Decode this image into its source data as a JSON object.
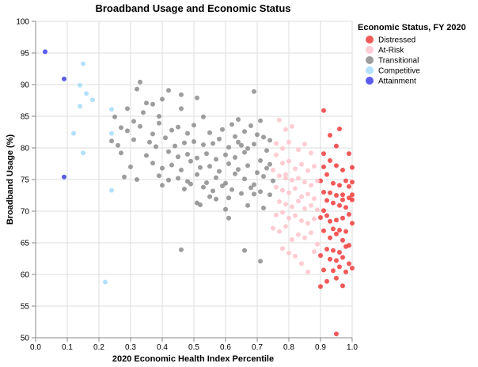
{
  "chart_data": {
    "type": "scatter",
    "title": "Broadband Usage and Economic Status",
    "xlabel": "2020 Economic Health Index Percentile",
    "ylabel": "Broadband Usage (%)",
    "xlim": [
      0,
      1
    ],
    "ylim": [
      50,
      100
    ],
    "xticks": [
      "0.0",
      "0.1",
      "0.2",
      "0.3",
      "0.4",
      "0.5",
      "0.6",
      "0.7",
      "0.8",
      "0.9",
      "1.0"
    ],
    "yticks": [
      "50",
      "55",
      "60",
      "65",
      "70",
      "75",
      "80",
      "85",
      "90",
      "95",
      "100"
    ],
    "grid": true,
    "legend": {
      "title": "Economic Status, FY 2020",
      "position": "right"
    },
    "series": [
      {
        "name": "Distressed",
        "color": "#f03c3c",
        "points": [
          [
            0.91,
            85.9
          ],
          [
            0.93,
            82.0
          ],
          [
            0.96,
            83.0
          ],
          [
            0.95,
            80.3
          ],
          [
            0.91,
            79.1
          ],
          [
            0.93,
            78.0
          ],
          [
            0.99,
            79.1
          ],
          [
            0.91,
            77.0
          ],
          [
            0.95,
            77.2
          ],
          [
            0.97,
            76.5
          ],
          [
            1.0,
            76.9
          ],
          [
            0.92,
            75.8
          ],
          [
            0.9,
            74.8
          ],
          [
            0.94,
            74.4
          ],
          [
            0.96,
            74.1
          ],
          [
            0.98,
            74.8
          ],
          [
            0.99,
            73.9
          ],
          [
            1.0,
            74.6
          ],
          [
            0.91,
            73.0
          ],
          [
            0.93,
            72.9
          ],
          [
            0.95,
            72.5
          ],
          [
            0.97,
            72.6
          ],
          [
            0.99,
            72.1
          ],
          [
            0.92,
            71.7
          ],
          [
            0.94,
            71.3
          ],
          [
            0.96,
            70.9
          ],
          [
            0.98,
            70.6
          ],
          [
            1.0,
            71.8
          ],
          [
            0.91,
            70.1
          ],
          [
            0.9,
            69.0
          ],
          [
            0.93,
            68.4
          ],
          [
            0.95,
            68.6
          ],
          [
            0.97,
            68.9
          ],
          [
            0.99,
            69.5
          ],
          [
            0.94,
            67.2
          ],
          [
            0.96,
            67.0
          ],
          [
            0.98,
            66.8
          ],
          [
            1.0,
            68.1
          ],
          [
            0.91,
            66.9
          ],
          [
            0.93,
            65.8
          ],
          [
            0.95,
            66.4
          ],
          [
            0.97,
            65.4
          ],
          [
            0.99,
            64.6
          ],
          [
            0.92,
            64.0
          ],
          [
            0.94,
            63.8
          ],
          [
            0.96,
            63.5
          ],
          [
            0.98,
            64.4
          ],
          [
            0.9,
            63.0
          ],
          [
            0.93,
            62.4
          ],
          [
            0.95,
            62.2
          ],
          [
            0.97,
            62.7
          ],
          [
            0.99,
            61.7
          ],
          [
            0.91,
            60.7
          ],
          [
            0.94,
            60.6
          ],
          [
            0.96,
            61.2
          ],
          [
            0.98,
            60.4
          ],
          [
            1.0,
            61.0
          ],
          [
            0.9,
            58.1
          ],
          [
            0.92,
            58.9
          ],
          [
            0.95,
            59.4
          ],
          [
            0.97,
            58.2
          ],
          [
            0.95,
            50.6
          ],
          [
            0.92,
            69.3
          ],
          [
            0.97,
            71.8
          ],
          [
            1.0,
            72.6
          ]
        ]
      },
      {
        "name": "At-Risk",
        "color": "#ffc3cc",
        "points": [
          [
            0.77,
            84.4
          ],
          [
            0.79,
            82.9
          ],
          [
            0.81,
            83.4
          ],
          [
            0.8,
            80.9
          ],
          [
            0.78,
            79.9
          ],
          [
            0.83,
            79.7
          ],
          [
            0.85,
            80.6
          ],
          [
            0.87,
            79.2
          ],
          [
            0.76,
            78.9
          ],
          [
            0.78,
            77.6
          ],
          [
            0.8,
            77.9
          ],
          [
            0.82,
            76.7
          ],
          [
            0.84,
            77.4
          ],
          [
            0.86,
            76.4
          ],
          [
            0.88,
            77.1
          ],
          [
            0.75,
            76.5
          ],
          [
            0.77,
            75.6
          ],
          [
            0.79,
            75.8
          ],
          [
            0.81,
            74.9
          ],
          [
            0.83,
            75.2
          ],
          [
            0.85,
            74.6
          ],
          [
            0.87,
            74.1
          ],
          [
            0.89,
            74.8
          ],
          [
            0.76,
            73.8
          ],
          [
            0.78,
            73.3
          ],
          [
            0.8,
            72.9
          ],
          [
            0.82,
            73.6
          ],
          [
            0.84,
            72.3
          ],
          [
            0.86,
            72.7
          ],
          [
            0.88,
            72.0
          ],
          [
            0.77,
            71.5
          ],
          [
            0.79,
            71.1
          ],
          [
            0.81,
            70.7
          ],
          [
            0.83,
            71.6
          ],
          [
            0.85,
            70.4
          ],
          [
            0.87,
            70.9
          ],
          [
            0.89,
            70.2
          ],
          [
            0.76,
            69.4
          ],
          [
            0.78,
            69.8
          ],
          [
            0.8,
            68.9
          ],
          [
            0.82,
            69.3
          ],
          [
            0.84,
            68.5
          ],
          [
            0.86,
            68.1
          ],
          [
            0.88,
            68.8
          ],
          [
            0.75,
            67.3
          ],
          [
            0.77,
            66.8
          ],
          [
            0.79,
            67.6
          ],
          [
            0.81,
            65.5
          ],
          [
            0.83,
            66.3
          ],
          [
            0.85,
            65.8
          ],
          [
            0.87,
            66.6
          ],
          [
            0.89,
            64.8
          ],
          [
            0.78,
            64.1
          ],
          [
            0.8,
            63.4
          ],
          [
            0.82,
            62.9
          ],
          [
            0.84,
            61.7
          ],
          [
            0.86,
            60.4
          ],
          [
            0.88,
            63.6
          ],
          [
            0.79,
            75.2
          ],
          [
            0.76,
            80.7
          ]
        ]
      },
      {
        "name": "Transitional",
        "color": "#8c8c8c",
        "points": [
          [
            0.33,
            90.4
          ],
          [
            0.32,
            89.3
          ],
          [
            0.42,
            89.1
          ],
          [
            0.4,
            87.7
          ],
          [
            0.46,
            88.4
          ],
          [
            0.69,
            88.9
          ],
          [
            0.35,
            87.1
          ],
          [
            0.29,
            86.2
          ],
          [
            0.37,
            86.9
          ],
          [
            0.51,
            87.9
          ],
          [
            0.25,
            84.9
          ],
          [
            0.31,
            84.2
          ],
          [
            0.34,
            85.6
          ],
          [
            0.39,
            85.0
          ],
          [
            0.46,
            86.2
          ],
          [
            0.53,
            84.9
          ],
          [
            0.64,
            84.5
          ],
          [
            0.71,
            84.3
          ],
          [
            0.27,
            83.2
          ],
          [
            0.29,
            82.7
          ],
          [
            0.33,
            83.4
          ],
          [
            0.37,
            82.2
          ],
          [
            0.39,
            83.9
          ],
          [
            0.43,
            82.8
          ],
          [
            0.45,
            83.3
          ],
          [
            0.48,
            82.3
          ],
          [
            0.5,
            83.6
          ],
          [
            0.55,
            82.4
          ],
          [
            0.59,
            82.9
          ],
          [
            0.62,
            83.7
          ],
          [
            0.66,
            82.6
          ],
          [
            0.68,
            83.5
          ],
          [
            0.7,
            82.1
          ],
          [
            0.72,
            81.7
          ],
          [
            0.74,
            81.2
          ],
          [
            0.24,
            81.1
          ],
          [
            0.26,
            80.4
          ],
          [
            0.31,
            81.3
          ],
          [
            0.36,
            80.9
          ],
          [
            0.38,
            80.2
          ],
          [
            0.41,
            81.6
          ],
          [
            0.44,
            80.3
          ],
          [
            0.47,
            80.8
          ],
          [
            0.5,
            81.0
          ],
          [
            0.53,
            80.5
          ],
          [
            0.56,
            80.7
          ],
          [
            0.58,
            81.4
          ],
          [
            0.61,
            80.1
          ],
          [
            0.63,
            81.8
          ],
          [
            0.65,
            80.4
          ],
          [
            0.67,
            79.9
          ],
          [
            0.69,
            80.6
          ],
          [
            0.73,
            79.6
          ],
          [
            0.27,
            79.2
          ],
          [
            0.35,
            78.8
          ],
          [
            0.42,
            79.4
          ],
          [
            0.45,
            78.6
          ],
          [
            0.48,
            79.0
          ],
          [
            0.51,
            78.4
          ],
          [
            0.54,
            79.1
          ],
          [
            0.57,
            78.2
          ],
          [
            0.6,
            78.9
          ],
          [
            0.63,
            78.5
          ],
          [
            0.66,
            79.3
          ],
          [
            0.71,
            78.0
          ],
          [
            0.74,
            77.4
          ],
          [
            0.3,
            77.0
          ],
          [
            0.37,
            77.6
          ],
          [
            0.4,
            76.8
          ],
          [
            0.43,
            77.3
          ],
          [
            0.46,
            76.5
          ],
          [
            0.49,
            77.9
          ],
          [
            0.52,
            76.9
          ],
          [
            0.55,
            77.1
          ],
          [
            0.58,
            76.3
          ],
          [
            0.61,
            77.5
          ],
          [
            0.64,
            76.6
          ],
          [
            0.67,
            77.2
          ],
          [
            0.7,
            76.1
          ],
          [
            0.73,
            76.8
          ],
          [
            0.28,
            75.4
          ],
          [
            0.32,
            75.0
          ],
          [
            0.39,
            75.6
          ],
          [
            0.42,
            74.9
          ],
          [
            0.45,
            75.2
          ],
          [
            0.48,
            74.7
          ],
          [
            0.51,
            75.8
          ],
          [
            0.54,
            74.5
          ],
          [
            0.57,
            75.3
          ],
          [
            0.6,
            74.4
          ],
          [
            0.63,
            75.9
          ],
          [
            0.66,
            75.1
          ],
          [
            0.69,
            74.2
          ],
          [
            0.72,
            75.5
          ],
          [
            0.75,
            74.8
          ],
          [
            0.4,
            74.1
          ],
          [
            0.47,
            73.5
          ],
          [
            0.53,
            73.8
          ],
          [
            0.56,
            73.2
          ],
          [
            0.59,
            74.0
          ],
          [
            0.62,
            73.4
          ],
          [
            0.65,
            72.8
          ],
          [
            0.68,
            73.7
          ],
          [
            0.71,
            73.1
          ],
          [
            0.74,
            72.6
          ],
          [
            0.55,
            72.3
          ],
          [
            0.61,
            72.1
          ],
          [
            0.69,
            72.7
          ],
          [
            0.51,
            71.3
          ],
          [
            0.52,
            71.0
          ],
          [
            0.6,
            70.3
          ],
          [
            0.67,
            70.9
          ],
          [
            0.72,
            70.5
          ],
          [
            0.61,
            68.9
          ],
          [
            0.46,
            63.9
          ],
          [
            0.66,
            63.8
          ],
          [
            0.71,
            62.1
          ],
          [
            0.64,
            80.9
          ],
          [
            0.49,
            74.3
          ],
          [
            0.57,
            71.9
          ]
        ]
      },
      {
        "name": "Competitive",
        "color": "#a6dcfc",
        "points": [
          [
            0.15,
            93.3
          ],
          [
            0.14,
            89.9
          ],
          [
            0.16,
            88.6
          ],
          [
            0.18,
            87.6
          ],
          [
            0.14,
            86.6
          ],
          [
            0.24,
            86.1
          ],
          [
            0.12,
            82.3
          ],
          [
            0.24,
            82.3
          ],
          [
            0.15,
            79.2
          ],
          [
            0.24,
            73.3
          ],
          [
            0.22,
            58.8
          ]
        ]
      },
      {
        "name": "Attainment",
        "color": "#4040ee",
        "points": [
          [
            0.03,
            95.2
          ],
          [
            0.09,
            90.9
          ],
          [
            0.09,
            75.4
          ]
        ]
      }
    ]
  }
}
